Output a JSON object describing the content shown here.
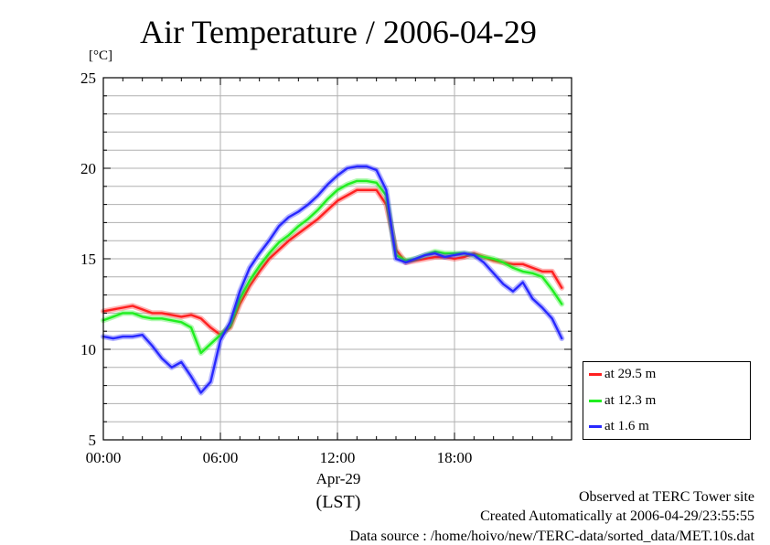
{
  "title": "Air Temperature / 2006-04-29",
  "unit": "[°C]",
  "x_date_label": "Apr-29",
  "x_tz_label": "(LST)",
  "footnotes": {
    "site": "Observed at TERC Tower site",
    "created": "Created Automatically at 2006-04-29/23:55:55",
    "source": "Data source : /home/hoivo/new/TERC-data/sorted_data/MET.10s.dat"
  },
  "colors": {
    "red": "#ff2020",
    "green": "#20ee20",
    "blue": "#2828ff",
    "grid": "#b0b0b0"
  },
  "chart_data": {
    "type": "line",
    "title": "Air Temperature / 2006-04-29",
    "ylabel": "[°C]",
    "xlabel": "(LST)",
    "xlim": [
      0,
      24
    ],
    "ylim": [
      5,
      25
    ],
    "xticks": [
      0,
      6,
      12,
      18
    ],
    "xtick_labels": [
      "00:00",
      "06:00",
      "12:00",
      "18:00"
    ],
    "yticks": [
      5,
      10,
      15,
      20,
      25
    ],
    "grid": true,
    "legend_position": "right-bottom",
    "x": [
      0,
      0.5,
      1,
      1.5,
      2,
      2.5,
      3,
      3.5,
      4,
      4.5,
      5,
      5.5,
      6,
      6.5,
      7,
      7.5,
      8,
      8.5,
      9,
      9.5,
      10,
      10.5,
      11,
      11.5,
      12,
      12.5,
      13,
      13.5,
      14,
      14.5,
      15,
      15.5,
      16,
      16.5,
      17,
      17.5,
      18,
      18.5,
      19,
      19.5,
      20,
      20.5,
      21,
      21.5,
      22,
      22.5,
      23,
      23.5
    ],
    "series": [
      {
        "name": "at 29.5 m",
        "color": "#ff2020",
        "values": [
          12.1,
          12.2,
          12.3,
          12.4,
          12.2,
          12.0,
          12.0,
          11.9,
          11.8,
          11.9,
          11.7,
          11.2,
          10.8,
          11.2,
          12.5,
          13.5,
          14.3,
          15.0,
          15.5,
          16.0,
          16.4,
          16.8,
          17.2,
          17.7,
          18.2,
          18.5,
          18.8,
          18.8,
          18.8,
          18.0,
          15.5,
          14.8,
          14.9,
          15.0,
          15.1,
          15.1,
          15.0,
          15.1,
          15.3,
          15.1,
          14.9,
          14.8,
          14.7,
          14.7,
          14.5,
          14.3,
          14.3,
          13.4
        ]
      },
      {
        "name": "at 12.3 m",
        "color": "#20ee20",
        "values": [
          11.6,
          11.8,
          12.0,
          12.0,
          11.8,
          11.7,
          11.7,
          11.6,
          11.5,
          11.2,
          9.8,
          10.3,
          10.8,
          11.3,
          12.8,
          13.8,
          14.6,
          15.3,
          15.9,
          16.3,
          16.8,
          17.2,
          17.7,
          18.3,
          18.8,
          19.1,
          19.3,
          19.3,
          19.2,
          18.5,
          15.2,
          14.9,
          15.0,
          15.2,
          15.4,
          15.3,
          15.3,
          15.3,
          15.2,
          15.1,
          15.0,
          14.8,
          14.5,
          14.3,
          14.2,
          14.0,
          13.3,
          12.5
        ]
      },
      {
        "name": "at 1.6 m",
        "color": "#2828ff",
        "values": [
          10.7,
          10.6,
          10.7,
          10.7,
          10.8,
          10.2,
          9.5,
          9.0,
          9.3,
          8.5,
          7.6,
          8.2,
          10.5,
          11.5,
          13.2,
          14.5,
          15.3,
          16.0,
          16.8,
          17.3,
          17.6,
          18.0,
          18.5,
          19.1,
          19.6,
          20.0,
          20.1,
          20.1,
          19.9,
          18.8,
          15.0,
          14.8,
          15.0,
          15.2,
          15.3,
          15.1,
          15.2,
          15.3,
          15.2,
          14.8,
          14.2,
          13.6,
          13.2,
          13.7,
          12.8,
          12.3,
          11.7,
          10.6
        ]
      }
    ]
  }
}
